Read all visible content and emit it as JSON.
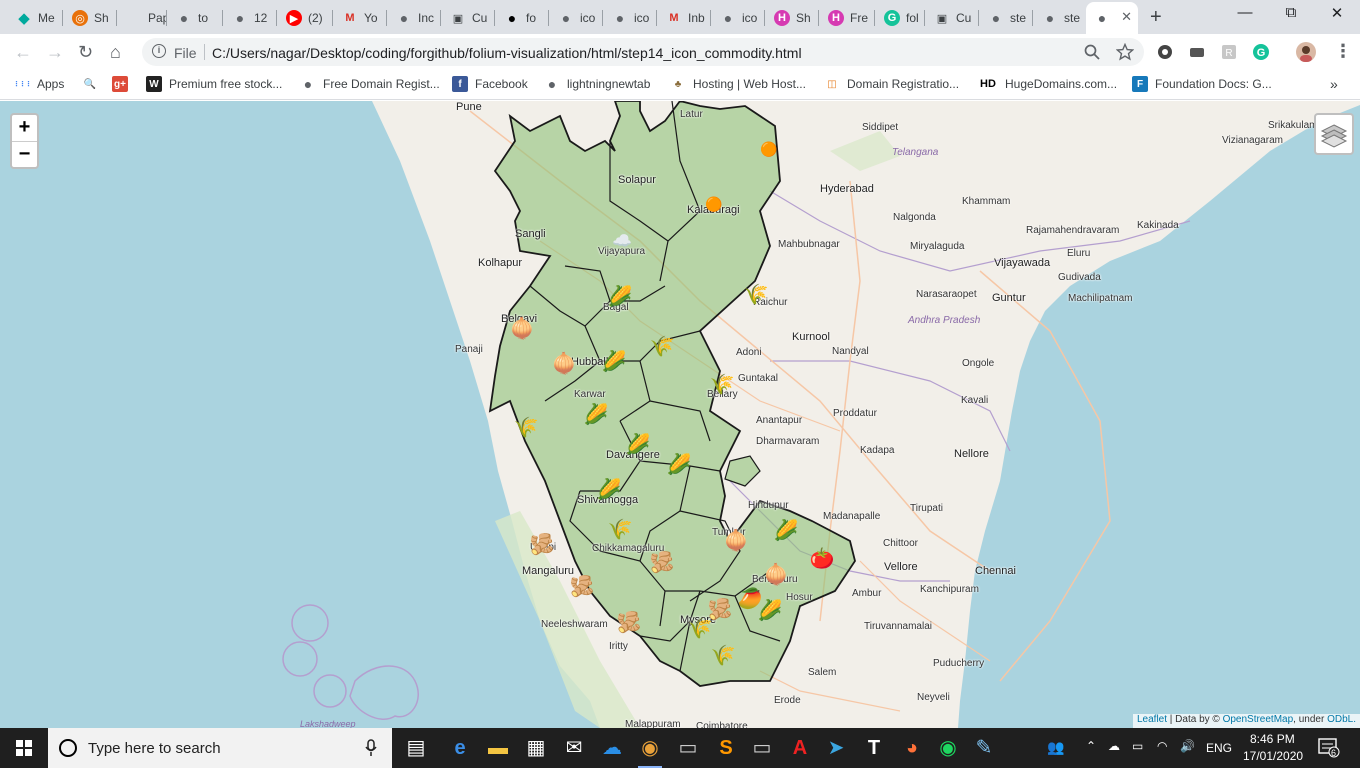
{
  "tabs": [
    {
      "title": "Me",
      "icon": "diamond-icon",
      "color": "#00a99d"
    },
    {
      "title": "Sh",
      "icon": "target-icon",
      "color": "#e8710a"
    },
    {
      "title": "Papier",
      "icon": "none",
      "color": "#3c4043"
    },
    {
      "title": "to",
      "icon": "globe-icon",
      "color": "#5f6368"
    },
    {
      "title": "12",
      "icon": "globe-icon",
      "color": "#5f6368"
    },
    {
      "title": "(2)",
      "icon": "youtube-icon",
      "color": "#ff0000"
    },
    {
      "title": "Yo",
      "icon": "gmail-icon",
      "color": "#d93025"
    },
    {
      "title": "Inc",
      "icon": "globe-icon",
      "color": "#5f6368"
    },
    {
      "title": "Cu",
      "icon": "picture-icon",
      "color": "#3c4043"
    },
    {
      "title": "fo",
      "icon": "github-icon",
      "color": "#000000"
    },
    {
      "title": "ico",
      "icon": "globe-icon",
      "color": "#5f6368"
    },
    {
      "title": "ico",
      "icon": "globe-icon",
      "color": "#5f6368"
    },
    {
      "title": "Inb",
      "icon": "gmail-icon",
      "color": "#d93025"
    },
    {
      "title": "ico",
      "icon": "globe-icon",
      "color": "#5f6368"
    },
    {
      "title": "Sh",
      "icon": "hackernoon-icon",
      "color": "#d63ab2"
    },
    {
      "title": "Fre",
      "icon": "hackernoon-icon",
      "color": "#d63ab2"
    },
    {
      "title": "fol",
      "icon": "grammarly-icon",
      "color": "#15c39a"
    },
    {
      "title": "Cu",
      "icon": "picture-icon",
      "color": "#3c4043"
    },
    {
      "title": "ste",
      "icon": "globe-icon",
      "color": "#5f6368"
    },
    {
      "title": "ste",
      "icon": "globe-icon",
      "color": "#5f6368"
    },
    {
      "title": "",
      "icon": "globe-icon",
      "color": "#5f6368",
      "active": true
    }
  ],
  "address_bar": {
    "security_label": "File",
    "url": "C:/Users/nagar/Desktop/coding/forgithub/folium-visualization/html/step14_icon_commodity.html"
  },
  "bookmarks": [
    {
      "label": "Apps",
      "icon": "apps-grid-icon",
      "color": "#4285f4"
    },
    {
      "label": "",
      "icon": "search-icon",
      "color": "#5f6368"
    },
    {
      "label": "",
      "icon": "google-plus-icon",
      "color": "#dd4b39"
    },
    {
      "label": "Premium free stock...",
      "icon": "w-icon",
      "color": "#222222"
    },
    {
      "label": "Free Domain Regist...",
      "icon": "globe-icon",
      "color": "#5f6368"
    },
    {
      "label": "Facebook",
      "icon": "facebook-icon",
      "color": "#3b5998"
    },
    {
      "label": "lightningnewtab",
      "icon": "globe-icon",
      "color": "#5f6368"
    },
    {
      "label": "Hosting | Web Host...",
      "icon": "host-icon",
      "color": "#8a6d3b"
    },
    {
      "label": "Domain Registratio...",
      "icon": "domain-icon",
      "color": "#e67e22"
    },
    {
      "label": "HugeDomains.com...",
      "icon": "hd-icon",
      "color": "#000000"
    },
    {
      "label": "Foundation Docs: G...",
      "icon": "foundation-icon",
      "color": "#1779ba"
    }
  ],
  "map": {
    "zoom_in": "+",
    "zoom_out": "−",
    "cities": [
      {
        "name": "Pune"
      },
      {
        "name": "Latur"
      },
      {
        "name": "Siddipet"
      },
      {
        "name": "Srikakulam"
      },
      {
        "name": "Vizianagaram"
      },
      {
        "name": "Solapur"
      },
      {
        "name": "Hyderabad"
      },
      {
        "name": "Khammam"
      },
      {
        "name": "Kalaburagi"
      },
      {
        "name": "Nalgonda"
      },
      {
        "name": "Rajamahendravaram"
      },
      {
        "name": "Kakinada"
      },
      {
        "name": "Sangli"
      },
      {
        "name": "Mahbubnagar"
      },
      {
        "name": "Miryalaguda"
      },
      {
        "name": "Eluru"
      },
      {
        "name": "Vijayapura"
      },
      {
        "name": "Kolhapur"
      },
      {
        "name": "Vijayawada"
      },
      {
        "name": "Gudivada"
      },
      {
        "name": "Narasaraopet"
      },
      {
        "name": "Guntur"
      },
      {
        "name": "Machilipatnam"
      },
      {
        "name": "Raichur"
      },
      {
        "name": "Bagal"
      },
      {
        "name": "Belgavi"
      },
      {
        "name": "Panaji"
      },
      {
        "name": "Kurnool"
      },
      {
        "name": "Adoni"
      },
      {
        "name": "Nandyal"
      },
      {
        "name": "Ongole"
      },
      {
        "name": "Hubballi"
      },
      {
        "name": "Guntakal"
      },
      {
        "name": "Bellary"
      },
      {
        "name": "Karwar"
      },
      {
        "name": "Kavali"
      },
      {
        "name": "Anantapur"
      },
      {
        "name": "Proddatur"
      },
      {
        "name": "Dharmavaram"
      },
      {
        "name": "Davangere"
      },
      {
        "name": "Kadapa"
      },
      {
        "name": "Nellore"
      },
      {
        "name": "Shivamogga"
      },
      {
        "name": "Hindupur"
      },
      {
        "name": "Madanapalle"
      },
      {
        "name": "Tirupati"
      },
      {
        "name": "Udupi"
      },
      {
        "name": "Tumkur"
      },
      {
        "name": "Chikkamagaluru"
      },
      {
        "name": "Chittoor"
      },
      {
        "name": "Mangaluru"
      },
      {
        "name": "Vellore"
      },
      {
        "name": "Chennai"
      },
      {
        "name": "Hosur"
      },
      {
        "name": "Ambur"
      },
      {
        "name": "Kanchipuram"
      },
      {
        "name": "Neeleshwaram"
      },
      {
        "name": "Tiruvannamalai"
      },
      {
        "name": "Mysore"
      },
      {
        "name": "Puducherry"
      },
      {
        "name": "Iritty"
      },
      {
        "name": "Salem"
      },
      {
        "name": "Neyveli"
      },
      {
        "name": "Erode"
      },
      {
        "name": "Malappuram"
      },
      {
        "name": "Coimbatore"
      },
      {
        "name": "Bengaluru"
      }
    ],
    "states": [
      {
        "name": "Telangana"
      },
      {
        "name": "Andhra Pradesh"
      },
      {
        "name": "Lakshadweep"
      }
    ],
    "markers": [
      {
        "commodity": "jowar",
        "icon": "grain-heap-icon"
      },
      {
        "commodity": "toor",
        "icon": "grain-heap-icon"
      },
      {
        "commodity": "cotton",
        "icon": "cotton-icon"
      },
      {
        "commodity": "maize",
        "icon": "corn-icon"
      },
      {
        "commodity": "wheat",
        "icon": "wheat-icon"
      },
      {
        "commodity": "onion",
        "icon": "onion-icon"
      },
      {
        "commodity": "ginger",
        "icon": "ginger-icon"
      },
      {
        "commodity": "tomato",
        "icon": "tomato-icon"
      },
      {
        "commodity": "mango",
        "icon": "mango-icon"
      }
    ],
    "attribution": {
      "leaflet": "Leaflet",
      "data_by": " | Data by © ",
      "osm": "OpenStreetMap",
      "under": ", under ",
      "odbl": "ODbL."
    },
    "fill_color": "#90c27a",
    "border_color": "#1a1a1a"
  },
  "taskbar": {
    "search_placeholder": "Type here to search",
    "language": "ENG",
    "time": "8:46 PM",
    "date": "17/01/2020",
    "notification_count": "6",
    "apps": [
      {
        "icon": "task-view-icon"
      },
      {
        "icon": "edge-icon"
      },
      {
        "icon": "file-explorer-icon"
      },
      {
        "icon": "store-icon"
      },
      {
        "icon": "mail-icon"
      },
      {
        "icon": "onedrive-icon"
      },
      {
        "icon": "chrome-icon"
      },
      {
        "icon": "terminal-icon"
      },
      {
        "icon": "sublime-icon"
      },
      {
        "icon": "cmd-icon"
      },
      {
        "icon": "acrobat-icon"
      },
      {
        "icon": "telegram-icon"
      },
      {
        "icon": "typora-icon"
      },
      {
        "icon": "firefox-icon"
      },
      {
        "icon": "spotify-icon"
      },
      {
        "icon": "paint-icon"
      }
    ]
  }
}
